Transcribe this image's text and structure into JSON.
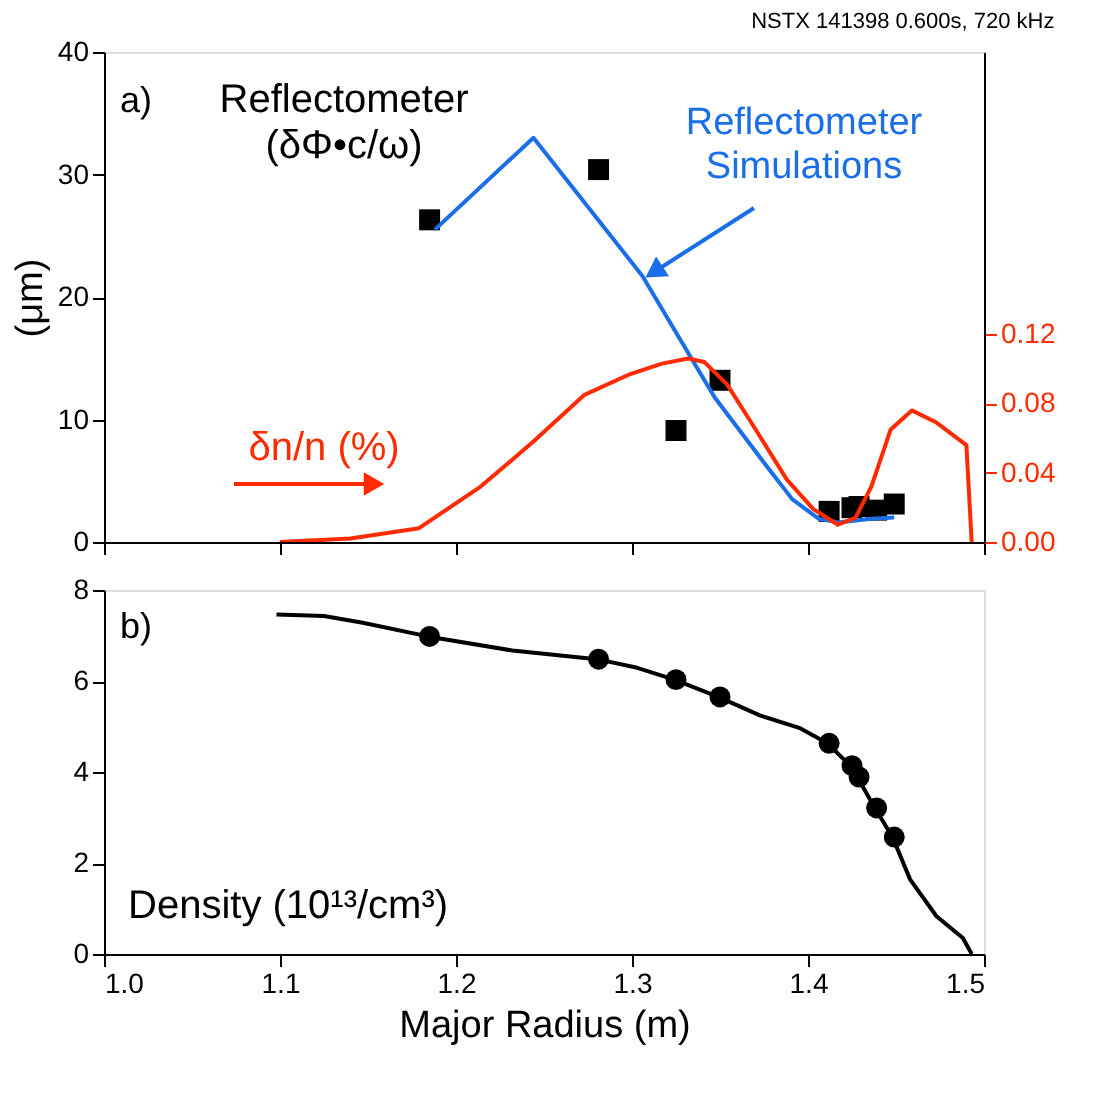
{
  "chart_data": [
    {
      "type": "line",
      "title": "NSTX 141398 0.600s, 720 kHz",
      "ylabel": "(μm)",
      "annotations": [
        "a)"
      ],
      "xlim": [
        1.0,
        1.5
      ],
      "xticks": [
        {
          "value": 1.0,
          "label": null
        },
        {
          "value": 1.1,
          "label": null
        },
        {
          "value": 1.2,
          "label": null
        },
        {
          "value": 1.3,
          "label": null
        },
        {
          "value": 1.4,
          "label": null
        },
        {
          "value": 1.5,
          "label": null
        }
      ],
      "ylim": [
        0,
        40
      ],
      "yticks": [
        0,
        10,
        20,
        30,
        40
      ],
      "y2lim": [
        0,
        0.283
      ],
      "y2ticks": [
        {
          "value": 0,
          "label": "0.00"
        },
        {
          "value": 0.04,
          "label": "0.04"
        },
        {
          "value": 0.08,
          "label": "0.08"
        },
        {
          "value": 0.12,
          "label": "0.12"
        }
      ],
      "tick_labels": "y",
      "grid": false,
      "series": [
        {
          "name": "Reflectometer (δΦ•c/ω)",
          "type": "scatter",
          "marker": "square",
          "color": "#000000",
          "x": [
            1.185,
            1.281,
            1.325,
            1.35,
            1.412,
            1.425,
            1.429,
            1.439,
            1.449
          ],
          "values": [
            26.3,
            30.4,
            9.1,
            13.2,
            2.5,
            2.8,
            2.9,
            2.6,
            3.1
          ]
        },
        {
          "name": "Reflectometer Simulations",
          "marker": "none",
          "color": "#1a6fe8",
          "x": [
            1.188,
            1.244,
            1.306,
            1.347,
            1.377,
            1.391,
            1.406,
            1.417,
            1.436,
            1.449
          ],
          "values": [
            25.5,
            33.0,
            21.7,
            11.8,
            6.1,
            3.5,
            1.9,
            1.6,
            1.9,
            2.0
          ]
        },
        {
          "name": "δn/n (%)",
          "marker": "none",
          "axis": "y2",
          "color": "#ff2a00",
          "x": [
            1.1,
            1.14,
            1.179,
            1.214,
            1.244,
            1.273,
            1.299,
            1.317,
            1.332,
            1.341,
            1.354,
            1.369,
            1.388,
            1.403,
            1.417,
            1.427,
            1.436,
            1.447,
            1.459,
            1.473,
            1.49,
            1.493
          ],
          "values": [
            0.0,
            0.002,
            0.008,
            0.032,
            0.058,
            0.085,
            0.097,
            0.103,
            0.106,
            0.104,
            0.091,
            0.067,
            0.036,
            0.019,
            0.01,
            0.014,
            0.032,
            0.065,
            0.076,
            0.069,
            0.056,
            0.0
          ]
        }
      ]
    },
    {
      "type": "line",
      "xlabel": "Major Radius (m)",
      "annotations": [
        "b)"
      ],
      "xlim": [
        1.0,
        1.5
      ],
      "xticks": [
        {
          "value": 1.0,
          "label": "1.0"
        },
        {
          "value": 1.1,
          "label": "1.1"
        },
        {
          "value": 1.2,
          "label": "1.2"
        },
        {
          "value": 1.3,
          "label": "1.3"
        },
        {
          "value": 1.4,
          "label": "1.4"
        },
        {
          "value": 1.5,
          "label": "1.5"
        }
      ],
      "ylim": [
        0,
        8
      ],
      "yticks": [
        0,
        2,
        4,
        6,
        8
      ],
      "grid": false,
      "series": [
        {
          "name": "Density (10¹³/cm³)",
          "marker": "none",
          "color": "#000000",
          "x": [
            1.098,
            1.125,
            1.147,
            1.184,
            1.232,
            1.28,
            1.303,
            1.324,
            1.349,
            1.373,
            1.395,
            1.411,
            1.424,
            1.428,
            1.438,
            1.448,
            1.458,
            1.473,
            1.488,
            1.493
          ],
          "values": [
            7.46,
            7.43,
            7.28,
            6.98,
            6.67,
            6.48,
            6.29,
            6.03,
            5.65,
            5.24,
            4.97,
            4.63,
            4.14,
            3.89,
            3.21,
            2.57,
            1.64,
            0.83,
            0.35,
            0.0
          ]
        },
        {
          "type": "scatter",
          "marker": "circle",
          "color": "#000000",
          "x": [
            1.185,
            1.281,
            1.325,
            1.35,
            1.412,
            1.425,
            1.429,
            1.439,
            1.449
          ],
          "values": [
            6.98,
            6.48,
            6.03,
            5.65,
            4.63,
            4.14,
            3.89,
            3.21,
            2.57
          ]
        }
      ]
    }
  ]
}
